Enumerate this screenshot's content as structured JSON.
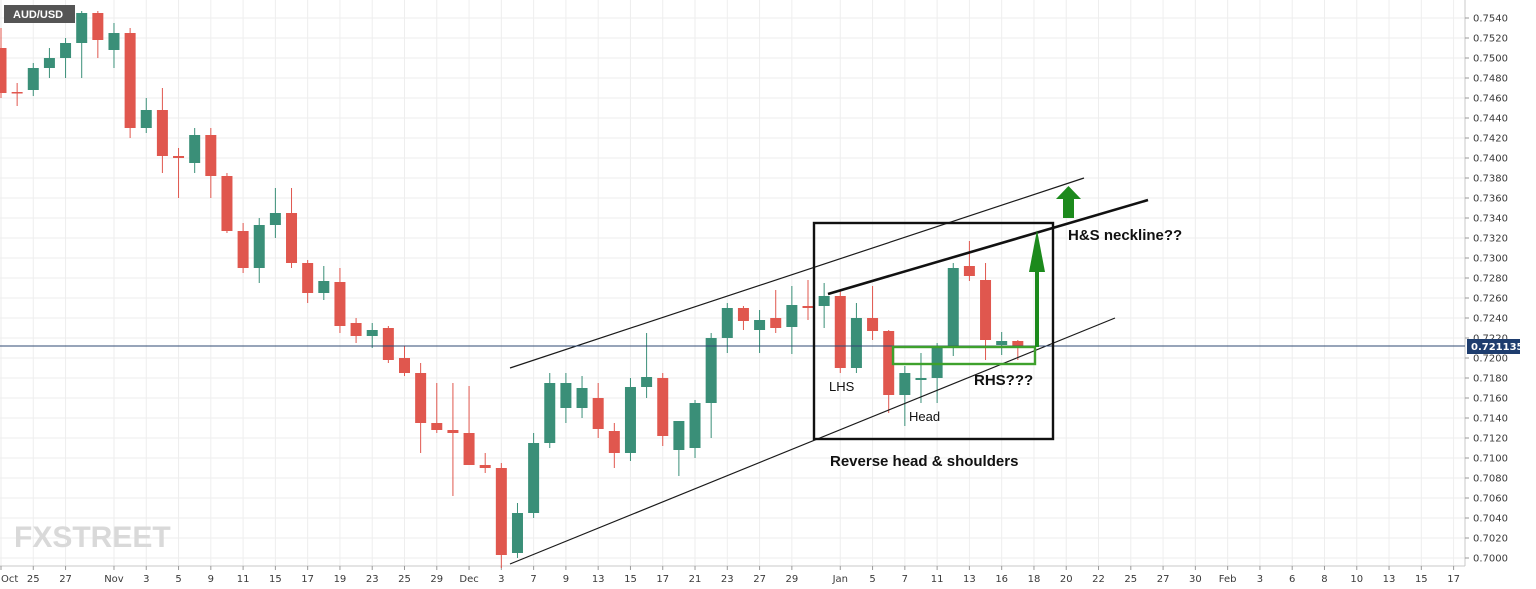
{
  "symbol_label": "AUD/USD",
  "price_label": "0.721135",
  "watermark": "FXSTREET",
  "chart_data": {
    "type": "candlestick",
    "symbol": "AUD/USD",
    "ylim": [
      0.699,
      0.7556
    ],
    "y_ticks": [
      "0.7540",
      "0.7520",
      "0.7500",
      "0.7480",
      "0.7460",
      "0.7440",
      "0.7420",
      "0.7400",
      "0.7380",
      "0.7360",
      "0.7340",
      "0.7320",
      "0.7300",
      "0.7280",
      "0.7260",
      "0.7240",
      "0.7220",
      "0.7200",
      "0.7180",
      "0.7160",
      "0.7140",
      "0.7120",
      "0.7100",
      "0.7080",
      "0.7060",
      "0.7040",
      "0.7020",
      "0.7000"
    ],
    "x_ticks": [
      {
        "i": 0,
        "label": "Oct"
      },
      {
        "i": 2,
        "label": "25"
      },
      {
        "i": 4,
        "label": "27"
      },
      {
        "i": 7,
        "label": "Nov"
      },
      {
        "i": 9,
        "label": "3"
      },
      {
        "i": 11,
        "label": "5"
      },
      {
        "i": 13,
        "label": "9"
      },
      {
        "i": 15,
        "label": "11"
      },
      {
        "i": 17,
        "label": "15"
      },
      {
        "i": 19,
        "label": "17"
      },
      {
        "i": 21,
        "label": "19"
      },
      {
        "i": 23,
        "label": "23"
      },
      {
        "i": 25,
        "label": "25"
      },
      {
        "i": 27,
        "label": "29"
      },
      {
        "i": 29,
        "label": "Dec"
      },
      {
        "i": 31,
        "label": "3"
      },
      {
        "i": 33,
        "label": "7"
      },
      {
        "i": 35,
        "label": "9"
      },
      {
        "i": 37,
        "label": "13"
      },
      {
        "i": 39,
        "label": "15"
      },
      {
        "i": 41,
        "label": "17"
      },
      {
        "i": 43,
        "label": "21"
      },
      {
        "i": 45,
        "label": "23"
      },
      {
        "i": 47,
        "label": "27"
      },
      {
        "i": 49,
        "label": "29"
      },
      {
        "i": 52,
        "label": "Jan"
      },
      {
        "i": 54,
        "label": "5"
      },
      {
        "i": 56,
        "label": "7"
      },
      {
        "i": 58,
        "label": "11"
      },
      {
        "i": 60,
        "label": "13"
      },
      {
        "i": 62,
        "label": "16"
      },
      {
        "i": 64,
        "label": "18"
      },
      {
        "i": 66,
        "label": "20"
      },
      {
        "i": 68,
        "label": "22"
      },
      {
        "i": 70,
        "label": "25"
      },
      {
        "i": 72,
        "label": "27"
      },
      {
        "i": 74,
        "label": "30"
      },
      {
        "i": 76,
        "label": "Feb"
      },
      {
        "i": 78,
        "label": "3"
      },
      {
        "i": 80,
        "label": "6"
      },
      {
        "i": 82,
        "label": "8"
      },
      {
        "i": 84,
        "label": "10"
      },
      {
        "i": 86,
        "label": "13"
      },
      {
        "i": 88,
        "label": "15"
      },
      {
        "i": 90,
        "label": "17"
      }
    ],
    "candles": [
      {
        "o": 0.751,
        "h": 0.753,
        "l": 0.746,
        "c": 0.7465
      },
      {
        "o": 0.7466,
        "h": 0.7475,
        "l": 0.7452,
        "c": 0.7465
      },
      {
        "o": 0.7468,
        "h": 0.7495,
        "l": 0.7462,
        "c": 0.749
      },
      {
        "o": 0.749,
        "h": 0.751,
        "l": 0.748,
        "c": 0.75
      },
      {
        "o": 0.75,
        "h": 0.752,
        "l": 0.748,
        "c": 0.7515
      },
      {
        "o": 0.7515,
        "h": 0.7547,
        "l": 0.748,
        "c": 0.7545
      },
      {
        "o": 0.7545,
        "h": 0.7547,
        "l": 0.75,
        "c": 0.7518
      },
      {
        "o": 0.7508,
        "h": 0.7535,
        "l": 0.749,
        "c": 0.7525
      },
      {
        "o": 0.7525,
        "h": 0.753,
        "l": 0.742,
        "c": 0.743
      },
      {
        "o": 0.743,
        "h": 0.746,
        "l": 0.7425,
        "c": 0.7448
      },
      {
        "o": 0.7448,
        "h": 0.747,
        "l": 0.7385,
        "c": 0.7402
      },
      {
        "o": 0.7402,
        "h": 0.741,
        "l": 0.736,
        "c": 0.74
      },
      {
        "o": 0.7395,
        "h": 0.743,
        "l": 0.7385,
        "c": 0.7423
      },
      {
        "o": 0.7423,
        "h": 0.743,
        "l": 0.736,
        "c": 0.7382
      },
      {
        "o": 0.7382,
        "h": 0.7385,
        "l": 0.7325,
        "c": 0.7327
      },
      {
        "o": 0.7327,
        "h": 0.7335,
        "l": 0.7285,
        "c": 0.729
      },
      {
        "o": 0.729,
        "h": 0.734,
        "l": 0.7275,
        "c": 0.7333
      },
      {
        "o": 0.7333,
        "h": 0.737,
        "l": 0.732,
        "c": 0.7345
      },
      {
        "o": 0.7345,
        "h": 0.737,
        "l": 0.729,
        "c": 0.7295
      },
      {
        "o": 0.7295,
        "h": 0.7298,
        "l": 0.7255,
        "c": 0.7265
      },
      {
        "o": 0.7265,
        "h": 0.7292,
        "l": 0.7258,
        "c": 0.7277
      },
      {
        "o": 0.7276,
        "h": 0.729,
        "l": 0.7225,
        "c": 0.7232
      },
      {
        "o": 0.7235,
        "h": 0.724,
        "l": 0.7215,
        "c": 0.7222
      },
      {
        "o": 0.7222,
        "h": 0.7235,
        "l": 0.721,
        "c": 0.7228
      },
      {
        "o": 0.723,
        "h": 0.7232,
        "l": 0.7195,
        "c": 0.7198
      },
      {
        "o": 0.72,
        "h": 0.7212,
        "l": 0.7182,
        "c": 0.7185
      },
      {
        "o": 0.7185,
        "h": 0.7195,
        "l": 0.7105,
        "c": 0.7135
      },
      {
        "o": 0.7135,
        "h": 0.7175,
        "l": 0.7125,
        "c": 0.7128
      },
      {
        "o": 0.7128,
        "h": 0.7175,
        "l": 0.7062,
        "c": 0.7125
      },
      {
        "o": 0.7125,
        "h": 0.7172,
        "l": 0.7093,
        "c": 0.7093
      },
      {
        "o": 0.7093,
        "h": 0.7105,
        "l": 0.7085,
        "c": 0.709
      },
      {
        "o": 0.709,
        "h": 0.7095,
        "l": 0.699,
        "c": 0.7003
      },
      {
        "o": 0.7005,
        "h": 0.7055,
        "l": 0.7,
        "c": 0.7045
      },
      {
        "o": 0.7045,
        "h": 0.7125,
        "l": 0.704,
        "c": 0.7115
      },
      {
        "o": 0.7115,
        "h": 0.7185,
        "l": 0.711,
        "c": 0.7175
      },
      {
        "o": 0.715,
        "h": 0.7185,
        "l": 0.7135,
        "c": 0.7175
      },
      {
        "o": 0.715,
        "h": 0.7182,
        "l": 0.714,
        "c": 0.717
      },
      {
        "o": 0.716,
        "h": 0.7175,
        "l": 0.712,
        "c": 0.7129
      },
      {
        "o": 0.7127,
        "h": 0.7135,
        "l": 0.709,
        "c": 0.7105
      },
      {
        "o": 0.7105,
        "h": 0.718,
        "l": 0.7097,
        "c": 0.7171
      },
      {
        "o": 0.7171,
        "h": 0.7225,
        "l": 0.716,
        "c": 0.7181
      },
      {
        "o": 0.718,
        "h": 0.7185,
        "l": 0.7112,
        "c": 0.7122
      },
      {
        "o": 0.7108,
        "h": 0.7135,
        "l": 0.7082,
        "c": 0.7137
      },
      {
        "o": 0.711,
        "h": 0.7158,
        "l": 0.71,
        "c": 0.7155
      },
      {
        "o": 0.7155,
        "h": 0.7225,
        "l": 0.712,
        "c": 0.722
      },
      {
        "o": 0.722,
        "h": 0.7255,
        "l": 0.7205,
        "c": 0.725
      },
      {
        "o": 0.725,
        "h": 0.7252,
        "l": 0.7228,
        "c": 0.7237
      },
      {
        "o": 0.7228,
        "h": 0.7248,
        "l": 0.7205,
        "c": 0.7238
      },
      {
        "o": 0.724,
        "h": 0.7268,
        "l": 0.7225,
        "c": 0.723
      },
      {
        "o": 0.7231,
        "h": 0.7272,
        "l": 0.7204,
        "c": 0.7253
      },
      {
        "o": 0.7252,
        "h": 0.7278,
        "l": 0.7238,
        "c": 0.725
      },
      {
        "o": 0.7252,
        "h": 0.7275,
        "l": 0.723,
        "c": 0.7262
      },
      {
        "o": 0.7262,
        "h": 0.7268,
        "l": 0.7185,
        "c": 0.719
      },
      {
        "o": 0.719,
        "h": 0.7255,
        "l": 0.7185,
        "c": 0.724
      },
      {
        "o": 0.724,
        "h": 0.7272,
        "l": 0.7218,
        "c": 0.7227
      },
      {
        "o": 0.7227,
        "h": 0.7228,
        "l": 0.7145,
        "c": 0.7163
      },
      {
        "o": 0.7163,
        "h": 0.7192,
        "l": 0.7132,
        "c": 0.7185
      },
      {
        "o": 0.7178,
        "h": 0.7205,
        "l": 0.7155,
        "c": 0.718
      },
      {
        "o": 0.718,
        "h": 0.7215,
        "l": 0.7155,
        "c": 0.7212
      },
      {
        "o": 0.721,
        "h": 0.7295,
        "l": 0.7202,
        "c": 0.729
      },
      {
        "o": 0.7292,
        "h": 0.7317,
        "l": 0.7277,
        "c": 0.7282
      },
      {
        "o": 0.7278,
        "h": 0.7295,
        "l": 0.7198,
        "c": 0.7218
      },
      {
        "o": 0.7213,
        "h": 0.7226,
        "l": 0.7203,
        "c": 0.7217
      },
      {
        "o": 0.7217,
        "h": 0.7218,
        "l": 0.7198,
        "c": 0.7212
      }
    ]
  },
  "annotations": {
    "lhs": "LHS",
    "head": "Head",
    "rhs": "RHS???",
    "neckline": "H&S neckline??",
    "pattern": "Reverse head & shoulders"
  },
  "colors": {
    "bull": "#3a8f78",
    "bear": "#e0574e",
    "arrow": "#1c8a1c",
    "box_green": "#3ea12c",
    "price_tag": "#1e3d6e",
    "price_line": "#2f4a73"
  }
}
